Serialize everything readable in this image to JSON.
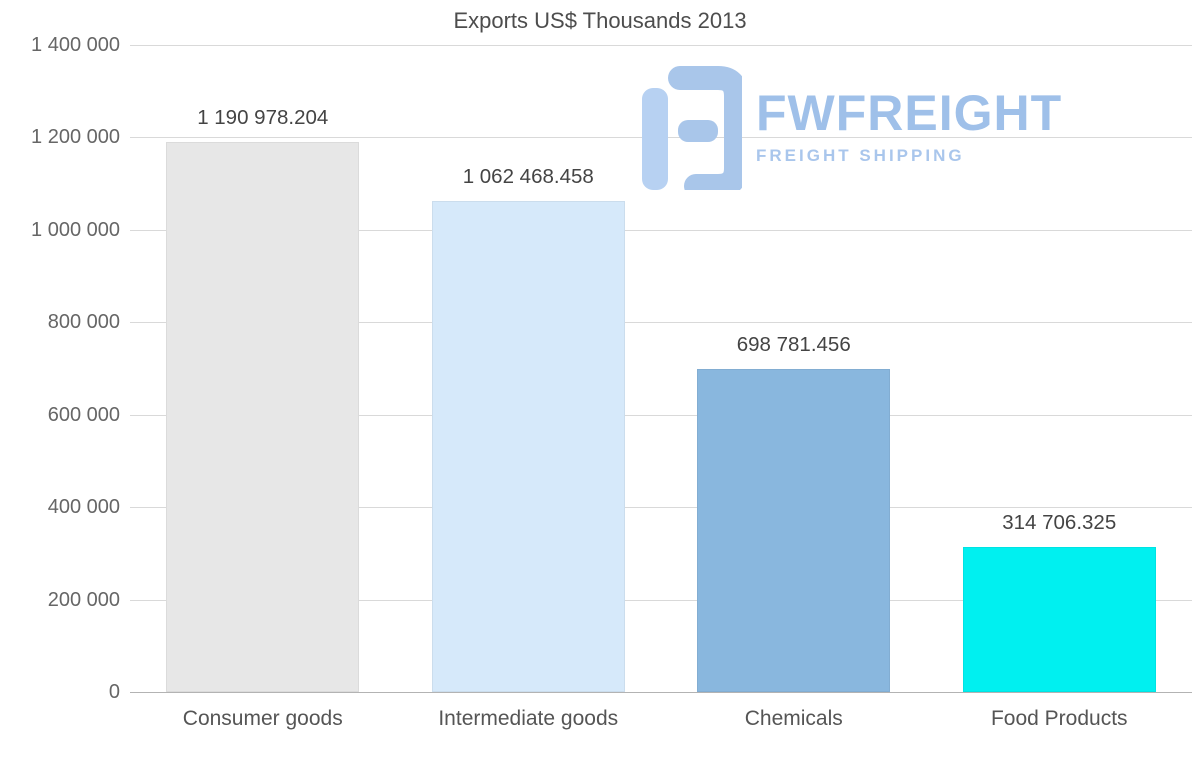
{
  "chart_data": {
    "type": "bar",
    "title": "Exports US$ Thousands 2013",
    "categories": [
      "Consumer goods",
      "Intermediate goods",
      "Chemicals",
      "Food Products"
    ],
    "values": [
      1190978.204,
      1062468.458,
      698781.456,
      314706.325
    ],
    "value_labels": [
      "1 190 978.204",
      "1 062 468.458",
      "698 781.456",
      "314 706.325"
    ],
    "bar_colors": [
      "#e7e7e7",
      "#d6e9fa",
      "#89b7de",
      "#00f0f0"
    ],
    "xlabel": "",
    "ylabel": "",
    "ylim": [
      0,
      1400000
    ],
    "ytick_interval": 200000,
    "ytick_labels": [
      "1 400 000",
      "1 200 000",
      "1 000 000",
      "800 000",
      "600 000",
      "400 000",
      "200 000",
      "0"
    ],
    "grid": true,
    "legend": "none"
  },
  "watermark": {
    "brand": "FWFREIGHT",
    "tagline": "FREIGHT SHIPPING",
    "color": "#9fc0e9"
  }
}
